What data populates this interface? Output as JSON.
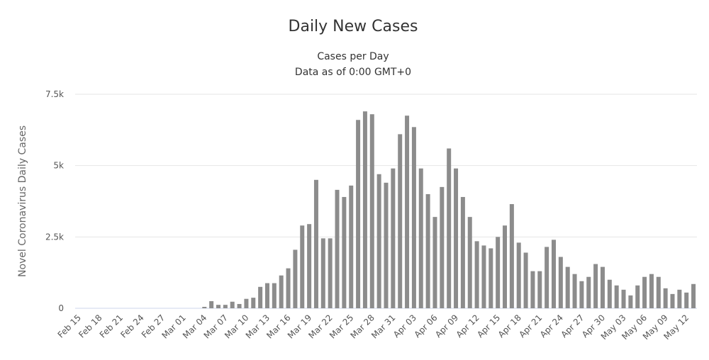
{
  "chart_data": {
    "type": "bar",
    "title": "Daily New Cases",
    "subtitle": [
      "Cases per Day",
      "Data as of 0:00 GMT+0"
    ],
    "y_label": "Novel Coronavirus Daily Cases",
    "color": "#8c8c8c",
    "grid": true,
    "ylim": [
      0,
      7500
    ],
    "yticks": [
      0,
      {
        "value": 2500,
        "label": "2.5k"
      },
      {
        "value": 5000,
        "label": "5k"
      },
      {
        "value": 7500,
        "label": "7.5k"
      }
    ],
    "categories": [
      "Feb 15",
      null,
      null,
      "Feb 18",
      null,
      null,
      "Feb 21",
      null,
      null,
      "Feb 24",
      null,
      null,
      "Feb 27",
      null,
      null,
      "Mar 01",
      null,
      null,
      "Mar 04",
      null,
      null,
      "Mar 07",
      null,
      null,
      "Mar 10",
      null,
      null,
      "Mar 13",
      null,
      null,
      "Mar 16",
      null,
      null,
      "Mar 19",
      null,
      null,
      "Mar 22",
      null,
      null,
      "Mar 25",
      null,
      null,
      "Mar 28",
      null,
      null,
      "Mar 31",
      null,
      null,
      "Apr 03",
      null,
      null,
      "Apr 06",
      null,
      null,
      "Apr 09",
      null,
      null,
      "Apr 12",
      null,
      null,
      "Apr 15",
      null,
      null,
      "Apr 18",
      null,
      null,
      "Apr 21",
      null,
      null,
      "Apr 24",
      null,
      null,
      "Apr 27",
      null,
      null,
      "Apr 30",
      null,
      null,
      "May 03",
      null,
      null,
      "May 06",
      null,
      null,
      "May 09",
      null,
      null,
      "May 12",
      null
    ],
    "values": [
      0,
      0,
      0,
      0,
      0,
      0,
      0,
      0,
      0,
      0,
      0,
      0,
      0,
      0,
      0,
      0,
      0,
      0,
      50,
      250,
      120,
      120,
      230,
      150,
      330,
      370,
      750,
      880,
      880,
      1150,
      1400,
      2050,
      2900,
      2950,
      4500,
      2450,
      2450,
      4150,
      3900,
      4300,
      6600,
      6900,
      6800,
      4700,
      4400,
      4900,
      6100,
      6750,
      6350,
      4900,
      4000,
      3200,
      4250,
      5600,
      4900,
      3900,
      3200,
      2350,
      2200,
      2100,
      2500,
      2900,
      3650,
      2300,
      1950,
      1300,
      1300,
      2150,
      2400,
      1800,
      1450,
      1200,
      950,
      1100,
      1550,
      1450,
      1000,
      800,
      650,
      450,
      800,
      1100,
      1200,
      1100,
      700,
      500,
      650,
      550,
      850
    ]
  }
}
